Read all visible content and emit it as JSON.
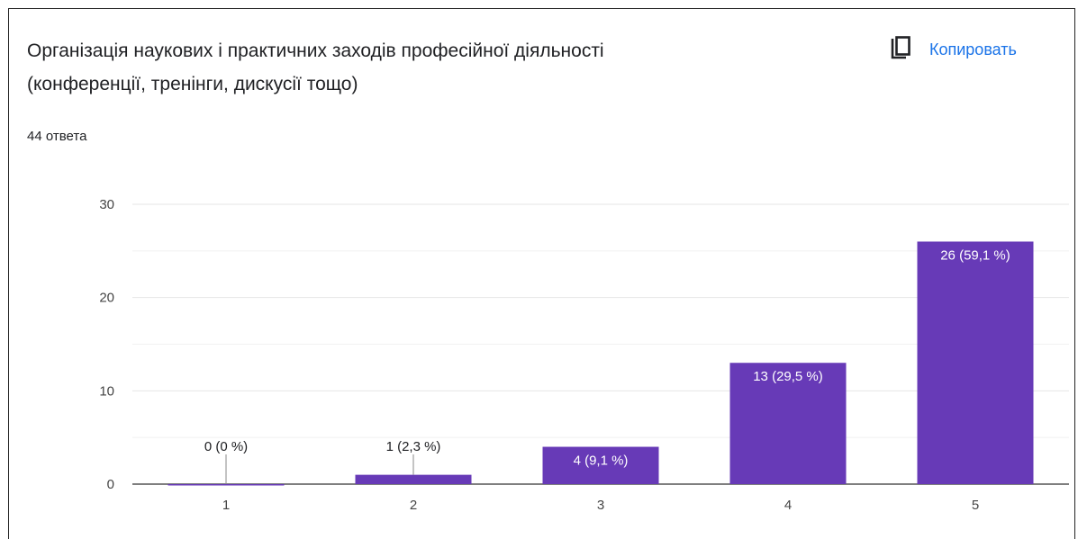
{
  "header": {
    "title_line1": "Організація наукових і практичних заходів професійної діяльності",
    "title_line2": "(конференції, тренінги, дискусії тощо)",
    "response_count": "44 ответа",
    "copy_label": "Копировать",
    "copy_icon": "copy-icon"
  },
  "colors": {
    "bar": "#673ab7",
    "copy": "#1a73e8",
    "grid": "#e6e6e6",
    "axis": "#333333"
  },
  "chart_data": {
    "type": "bar",
    "categories": [
      "1",
      "2",
      "3",
      "4",
      "5"
    ],
    "values": [
      0,
      1,
      4,
      13,
      26
    ],
    "data_labels": [
      "0 (0 %)",
      "1 (2,3 %)",
      "4 (9,1 %)",
      "13 (29,5 %)",
      "26 (59,1 %)"
    ],
    "ylim": [
      0,
      30
    ],
    "yticks": [
      0,
      10,
      20,
      30
    ],
    "grid": true
  }
}
